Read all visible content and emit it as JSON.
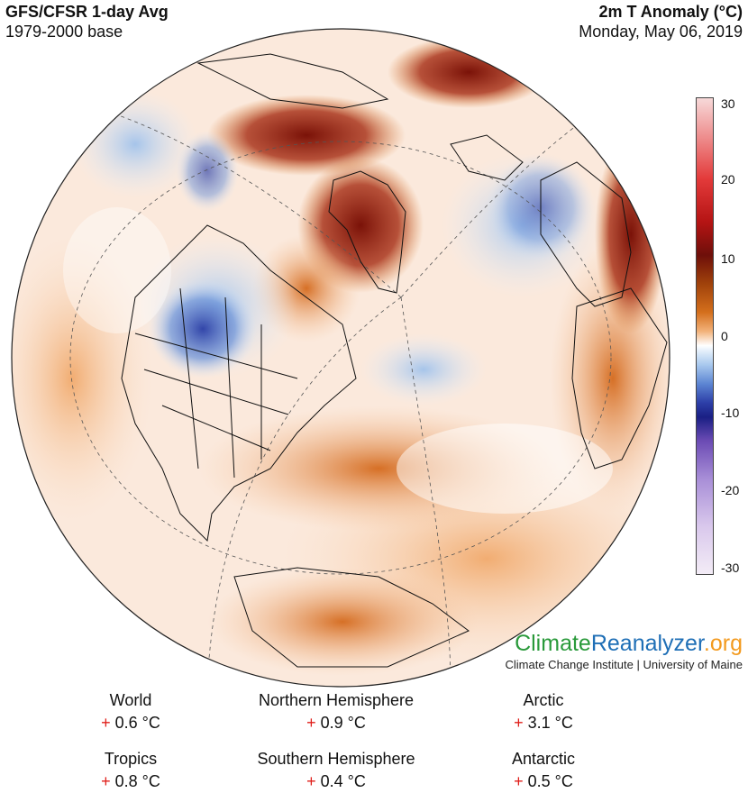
{
  "header": {
    "title_left": "GFS/CFSR 1-day Avg",
    "subtitle_left": "1979-2000 base",
    "title_right": "2m T Anomaly (°C)",
    "date": "Monday, May 06, 2019"
  },
  "colorbar": {
    "ticks": [
      "30",
      "20",
      "10",
      "0",
      "-10",
      "-20",
      "-30"
    ],
    "colors": [
      "#f7d9d9",
      "#e33a3a",
      "#6e0f0a",
      "#d46f1c",
      "#ffffff",
      "#5d86d3",
      "#1a1f84",
      "#a88ed7",
      "#f3ecf6"
    ]
  },
  "brand": {
    "logo_part1": "Climate",
    "logo_part2": "Reanalyzer",
    "logo_part3": ".org",
    "subtitle": "Climate Change Institute | University of Maine",
    "colors": {
      "climate": "#2a9a3b",
      "reanalyzer": "#1f6fb6",
      "org": "#f39a1e"
    }
  },
  "stats": [
    {
      "label": "World",
      "sign": "+",
      "value": "0.6 °C"
    },
    {
      "label": "Northern Hemisphere",
      "sign": "+",
      "value": "0.9 °C"
    },
    {
      "label": "Arctic",
      "sign": "+",
      "value": "3.1 °C"
    },
    {
      "label": "Tropics",
      "sign": "+",
      "value": "0.8 °C"
    },
    {
      "label": "Southern Hemisphere",
      "sign": "+",
      "value": "0.4 °C"
    },
    {
      "label": "Antarctic",
      "sign": "+",
      "value": "0.5 °C"
    }
  ]
}
